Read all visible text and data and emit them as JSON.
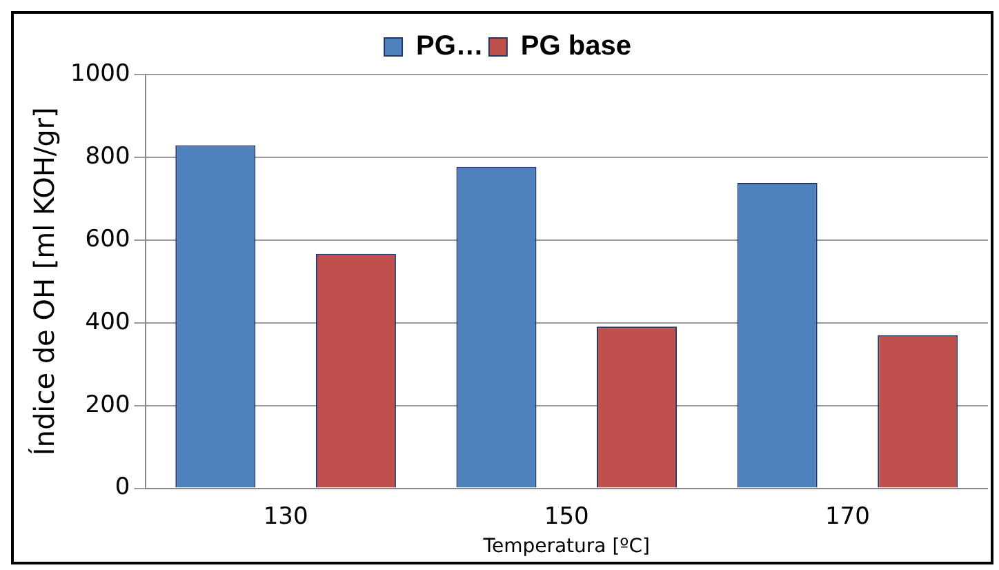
{
  "chart_data": {
    "type": "bar",
    "xlabel": "Temperatura [ºC]",
    "ylabel": "Índice de OH [ml KOH/gr]",
    "categories": [
      "130",
      "150",
      "170"
    ],
    "series": [
      {
        "name": "PG…",
        "color": "#4f81bd",
        "values": [
          829,
          777,
          738
        ]
      },
      {
        "name": "PG base",
        "color": "#c0504d",
        "values": [
          567,
          391,
          370
        ]
      }
    ],
    "ylim": [
      0,
      1000
    ],
    "yticks": [
      0,
      200,
      400,
      600,
      800,
      1000
    ],
    "grid": "y",
    "legend": "top"
  }
}
